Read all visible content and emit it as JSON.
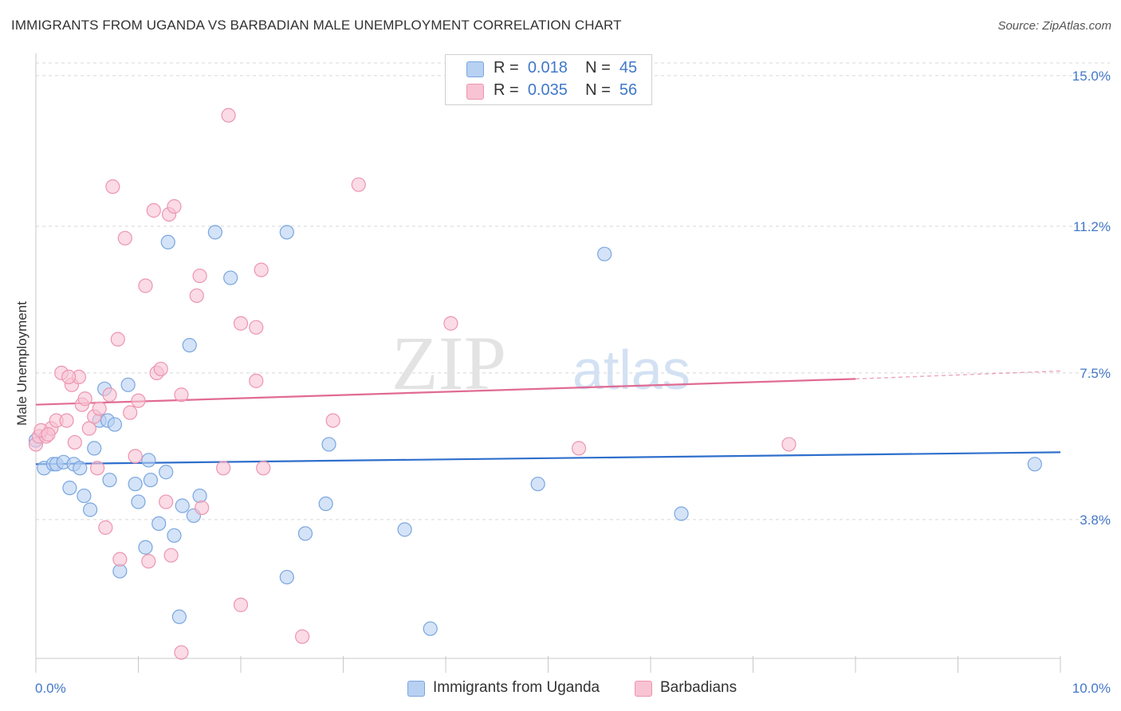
{
  "header": {
    "title": "IMMIGRANTS FROM UGANDA VS BARBADIAN MALE UNEMPLOYMENT CORRELATION CHART",
    "source": "Source: ZipAtlas.com"
  },
  "watermark": {
    "zip": "ZIP",
    "atlas": "atlas"
  },
  "legend": {
    "items": [
      {
        "r_label": "R =",
        "r_value": "0.018",
        "n_label": "N =",
        "n_value": "45"
      },
      {
        "r_label": "R =",
        "r_value": "0.035",
        "n_label": "N =",
        "n_value": "56"
      }
    ]
  },
  "bottom_legend": {
    "series_a": "Immigrants from Uganda",
    "series_b": "Barbadians"
  },
  "colors": {
    "blue_fill": "#b8d0f2",
    "blue_stroke": "#7aa6e0",
    "blue_line": "#2f6fcc",
    "pink_fill": "#f8c3d3",
    "pink_stroke": "#ec95b1",
    "pink_line": "#e06b93",
    "axis_text": "#4478c8",
    "grid": "#d8d8d8"
  },
  "chart_data": {
    "type": "scatter",
    "title": "IMMIGRANTS FROM UGANDA VS BARBADIAN MALE UNEMPLOYMENT CORRELATION CHART",
    "xlabel": "",
    "ylabel": "Male Unemployment",
    "xlim": [
      0,
      10
    ],
    "ylim": [
      0.3,
      15.4
    ],
    "x_tick_labels": [
      {
        "value": 0,
        "label": "0.0%"
      },
      {
        "value": 10,
        "label": "10.0%"
      }
    ],
    "y_ticks": [
      {
        "value": 3.8,
        "label": "3.8%"
      },
      {
        "value": 7.5,
        "label": "7.5%"
      },
      {
        "value": 11.2,
        "label": "11.2%"
      },
      {
        "value": 15.0,
        "label": "15.0%"
      }
    ],
    "series": [
      {
        "name": "Immigrants from Uganda",
        "r": 0.018,
        "n": 45,
        "trend": {
          "x": [
            0,
            10
          ],
          "y": [
            5.2,
            5.5
          ]
        },
        "points": [
          [
            0.0,
            5.8
          ],
          [
            0.08,
            5.1
          ],
          [
            0.17,
            5.2
          ],
          [
            0.2,
            5.2
          ],
          [
            0.27,
            5.25
          ],
          [
            0.33,
            4.6
          ],
          [
            0.37,
            5.2
          ],
          [
            0.43,
            5.1
          ],
          [
            0.47,
            4.4
          ],
          [
            0.53,
            4.05
          ],
          [
            0.57,
            5.6
          ],
          [
            0.62,
            6.3
          ],
          [
            0.67,
            7.1
          ],
          [
            0.7,
            6.3
          ],
          [
            0.72,
            4.8
          ],
          [
            0.77,
            6.2
          ],
          [
            0.82,
            2.5
          ],
          [
            0.9,
            7.2
          ],
          [
            0.97,
            4.7
          ],
          [
            1.0,
            4.25
          ],
          [
            1.07,
            3.1
          ],
          [
            1.1,
            5.3
          ],
          [
            1.12,
            4.8
          ],
          [
            1.2,
            3.7
          ],
          [
            1.27,
            5.0
          ],
          [
            1.29,
            10.8
          ],
          [
            1.35,
            3.4
          ],
          [
            1.4,
            1.35
          ],
          [
            1.43,
            4.15
          ],
          [
            1.5,
            8.2
          ],
          [
            1.54,
            3.9
          ],
          [
            1.6,
            4.4
          ],
          [
            1.75,
            11.05
          ],
          [
            1.9,
            9.9
          ],
          [
            2.45,
            2.35
          ],
          [
            2.45,
            11.05
          ],
          [
            2.63,
            3.45
          ],
          [
            2.83,
            4.2
          ],
          [
            2.86,
            5.7
          ],
          [
            3.6,
            3.55
          ],
          [
            3.85,
            1.05
          ],
          [
            4.9,
            4.7
          ],
          [
            5.55,
            10.5
          ],
          [
            6.3,
            3.95
          ],
          [
            9.75,
            5.2
          ]
        ]
      },
      {
        "name": "Barbadians",
        "r": 0.035,
        "n": 56,
        "trend": {
          "x": [
            0,
            8
          ],
          "y": [
            6.7,
            7.35
          ]
        },
        "trend_dashed": {
          "x": [
            8,
            10
          ],
          "y": [
            7.35,
            7.55
          ]
        },
        "points": [
          [
            0.0,
            5.7
          ],
          [
            0.03,
            5.9
          ],
          [
            0.1,
            5.9
          ],
          [
            0.15,
            6.1
          ],
          [
            0.2,
            6.3
          ],
          [
            0.25,
            7.5
          ],
          [
            0.3,
            6.3
          ],
          [
            0.35,
            7.2
          ],
          [
            0.38,
            5.75
          ],
          [
            0.42,
            7.4
          ],
          [
            0.45,
            6.7
          ],
          [
            0.48,
            6.85
          ],
          [
            0.52,
            6.1
          ],
          [
            0.57,
            6.4
          ],
          [
            0.6,
            5.1
          ],
          [
            0.62,
            6.6
          ],
          [
            0.68,
            3.6
          ],
          [
            0.72,
            6.95
          ],
          [
            0.75,
            12.2
          ],
          [
            0.8,
            8.35
          ],
          [
            0.82,
            2.8
          ],
          [
            0.87,
            10.9
          ],
          [
            0.92,
            6.5
          ],
          [
            0.97,
            5.4
          ],
          [
            1.0,
            6.8
          ],
          [
            1.07,
            9.7
          ],
          [
            1.1,
            2.75
          ],
          [
            1.15,
            11.6
          ],
          [
            1.18,
            7.5
          ],
          [
            1.22,
            7.6
          ],
          [
            1.27,
            4.25
          ],
          [
            1.3,
            11.5
          ],
          [
            1.32,
            2.9
          ],
          [
            1.35,
            11.7
          ],
          [
            1.42,
            0.45
          ],
          [
            1.42,
            6.95
          ],
          [
            1.57,
            9.45
          ],
          [
            1.6,
            9.95
          ],
          [
            1.62,
            4.1
          ],
          [
            1.83,
            5.1
          ],
          [
            1.88,
            14.0
          ],
          [
            2.0,
            8.75
          ],
          [
            2.0,
            1.65
          ],
          [
            2.15,
            8.65
          ],
          [
            2.15,
            7.3
          ],
          [
            2.2,
            10.1
          ],
          [
            2.22,
            5.1
          ],
          [
            2.6,
            0.85
          ],
          [
            2.9,
            6.3
          ],
          [
            3.15,
            12.25
          ],
          [
            4.05,
            8.75
          ],
          [
            5.3,
            5.6
          ],
          [
            7.35,
            5.7
          ],
          [
            0.05,
            6.05
          ],
          [
            0.12,
            5.95
          ],
          [
            0.32,
            7.4
          ]
        ]
      }
    ]
  }
}
